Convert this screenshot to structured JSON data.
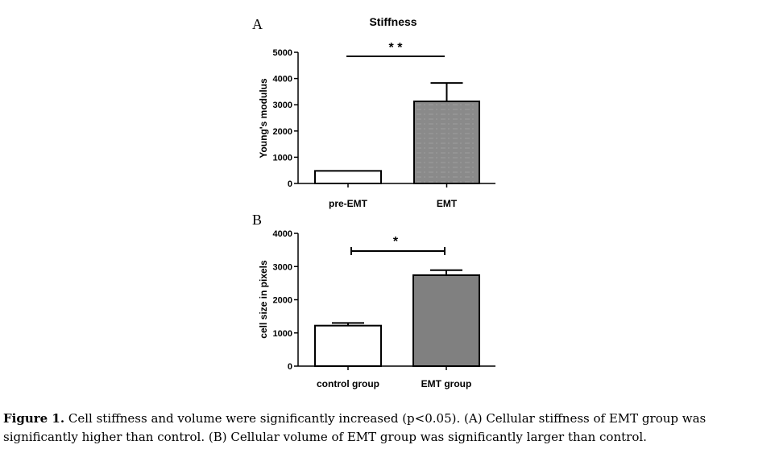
{
  "chart_data": [
    {
      "type": "bar",
      "panel": "A",
      "title": "Stiffness",
      "ylabel": "Young's modulus",
      "xlabel": "",
      "categories": [
        "pre-EMT",
        "EMT"
      ],
      "values": [
        480,
        3130
      ],
      "errors": [
        0,
        700
      ],
      "ylim": [
        0,
        5000
      ],
      "yticks": [
        0,
        1000,
        2000,
        3000,
        4000,
        5000
      ],
      "bar_colors": [
        "#ffffff",
        "#8a8a8a"
      ],
      "significance": "* *",
      "grid": false
    },
    {
      "type": "bar",
      "panel": "B",
      "title": "",
      "ylabel": "cell size in pixels",
      "xlabel": "",
      "categories": [
        "control group",
        "EMT group"
      ],
      "values": [
        1220,
        2740
      ],
      "errors": [
        80,
        150
      ],
      "ylim": [
        0,
        4000
      ],
      "yticks": [
        0,
        1000,
        2000,
        3000,
        4000
      ],
      "bar_colors": [
        "#ffffff",
        "#808080"
      ],
      "significance": "*",
      "grid": false
    }
  ],
  "caption": {
    "label": "Figure 1.",
    "text": " Cell stiffness and volume were significantly increased (p<0.05). (A) Cellular stiffness of EMT group was significantly higher than control. (B) Cellular volume of EMT group was significantly larger than control."
  }
}
